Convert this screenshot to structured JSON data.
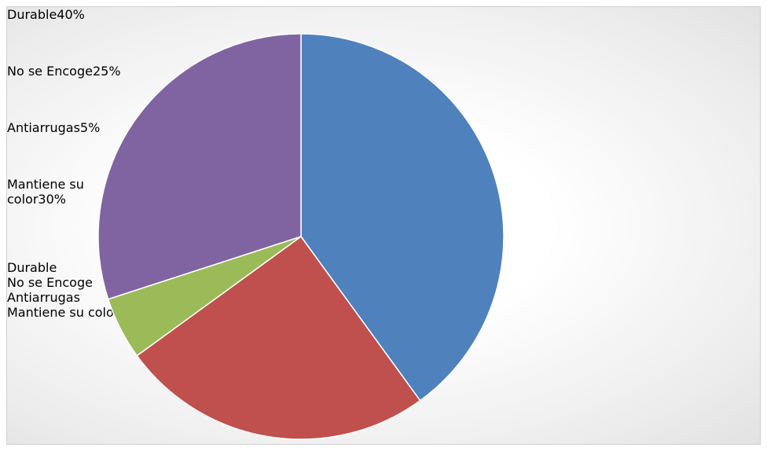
{
  "chart_data": {
    "type": "pie",
    "categories": [
      "Durable",
      "No se Encoge",
      "Antiarrugas",
      "Mantiene su color"
    ],
    "values": [
      40,
      25,
      5,
      30
    ],
    "value_labels": [
      "40%",
      "25%",
      "5%",
      "30%"
    ],
    "colors": [
      "#4f81bd",
      "#c0504d",
      "#9bbb59",
      "#8064a2"
    ],
    "legend": "right"
  }
}
